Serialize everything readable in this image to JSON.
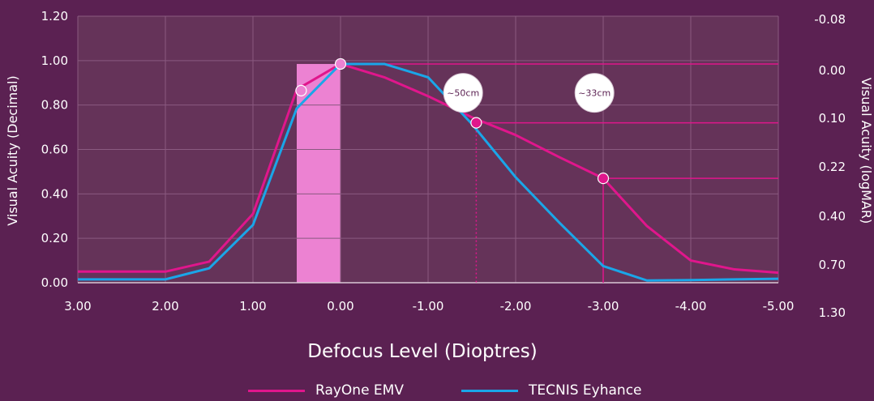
{
  "chart_data": {
    "type": "line",
    "xlabel": "Defocus Level (Dioptres)",
    "ylabel": "Visual Acuity (Decimal)",
    "y2label": "Visual Acuity (logMAR)",
    "x": [
      3.0,
      2.5,
      2.0,
      1.5,
      1.0,
      0.5,
      0.0,
      -0.5,
      -1.0,
      -1.5,
      -2.0,
      -2.5,
      -3.0,
      -3.5,
      -4.0,
      -4.5,
      -5.0
    ],
    "xlim": [
      3.0,
      -5.0
    ],
    "ylim": [
      0,
      1.2
    ],
    "x_ticks": [
      "3.00",
      "2.00",
      "1.00",
      "0.00",
      "-1.00",
      "-2.00",
      "-3.00",
      "-4.00",
      "-5.00"
    ],
    "y_ticks": [
      "0.00",
      "0.20",
      "0.40",
      "0.60",
      "0.80",
      "1.00",
      "1.20"
    ],
    "y2_ticks": [
      "1.30",
      "0.70",
      "0.40",
      "0.22",
      "0.10",
      "0.00",
      "-0.08"
    ],
    "series": [
      {
        "name": "RayOne EMV",
        "color": "#e0168c",
        "values": [
          0.05,
          0.05,
          0.05,
          0.095,
          0.31,
          0.87,
          0.985,
          0.925,
          0.84,
          0.745,
          0.665,
          0.565,
          0.47,
          0.255,
          0.1,
          0.06,
          0.045
        ]
      },
      {
        "name": "TECNIS Eyhance",
        "color": "#1aa6e8",
        "values": [
          0.015,
          0.015,
          0.015,
          0.065,
          0.26,
          0.785,
          0.985,
          0.985,
          0.925,
          0.715,
          0.475,
          0.27,
          0.075,
          0.01,
          0.012,
          0.015,
          0.018
        ]
      }
    ],
    "highlight_band": {
      "x_from": 0.5,
      "x_to": 0.0,
      "color": "#ec82d2"
    },
    "markers": [
      {
        "x": 0.45,
        "y": 0.865,
        "color": "#ec82d2"
      },
      {
        "x": 0.0,
        "y": 0.985,
        "color": "#ec82d2"
      },
      {
        "x": -1.55,
        "y": 0.72,
        "color": "#e0168c"
      },
      {
        "x": -3.0,
        "y": 0.47,
        "color": "#e0168c"
      }
    ],
    "ref_lines": [
      {
        "y": 0.985,
        "x_from": 0.0,
        "color": "#e0168c",
        "style": "solid"
      },
      {
        "y": 0.72,
        "x_from": -1.55,
        "color": "#e0168c",
        "style": "solid"
      },
      {
        "y": 0.47,
        "x_from": -3.0,
        "color": "#e0168c",
        "style": "solid"
      },
      {
        "x": -1.55,
        "y_to": 0.72,
        "color": "#e0168c",
        "style": "dotted"
      },
      {
        "x": -3.0,
        "y_to": 0.47,
        "color": "#e0168c",
        "style": "solid"
      }
    ],
    "annotations": [
      {
        "text": "~50cm",
        "x": -1.4,
        "y": 0.855
      },
      {
        "text": "~33cm",
        "x": -2.9,
        "y": 0.855
      }
    ],
    "grid": true,
    "legend_placement": "bottom-center"
  }
}
